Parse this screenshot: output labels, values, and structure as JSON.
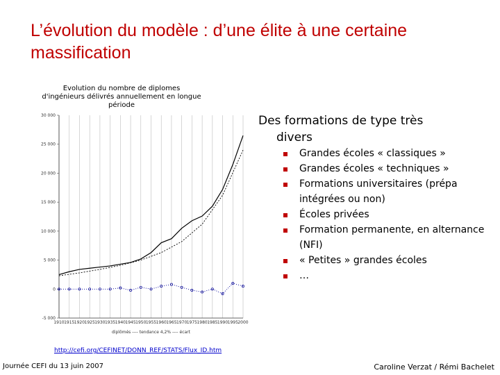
{
  "slide": {
    "title": "L’évolution du modèle : d’une élite à une certaine massification",
    "heading_line1": "Des formations de type très",
    "heading_line2": "divers",
    "bullets": [
      "Grandes écoles « classiques »",
      "Grandes écoles « techniques »",
      "Formations universitaires (prépa intégrées ou non)",
      "Écoles privées",
      "Formation permanente, en alternance (NFI)",
      "« Petites » grandes écoles",
      "…"
    ],
    "link": "http://cefi.org/CEFINET/DONN_REF/STATS/Flux_ID.htm",
    "footer_left": "Journée CEFI du 13 juin 2007",
    "footer_right": "Caroline Verzat / Rémi Bachelet"
  },
  "chart_data": {
    "type": "line",
    "title": "Evolution du nombre de diplomes d'ingénieurs délivrés annuellement en longue période",
    "xlabel": "",
    "ylabel": "",
    "x_ticks": [
      "1910",
      "1915",
      "1920",
      "1925",
      "1930",
      "1935",
      "1940",
      "1945",
      "1950",
      "1955",
      "1960",
      "1965",
      "1970",
      "1975",
      "1980",
      "1985",
      "1990",
      "1995",
      "2000"
    ],
    "y_ticks": [
      "30 000",
      "25 000",
      "20 000",
      "15 000",
      "10 000",
      "5 000",
      "0",
      "-5 000"
    ],
    "ylim": [
      -5000,
      30000
    ],
    "xlim": [
      1910,
      2000
    ],
    "legend_text": "diplômés ---- tendance 4,2% ---- écart",
    "grid": true,
    "series": [
      {
        "color": "#000000",
        "x": [
          1910,
          1915,
          1920,
          1925,
          1930,
          1935,
          1940,
          1945,
          1950,
          1955,
          1960,
          1965,
          1970,
          1975,
          1980,
          1985,
          1990,
          1995,
          2000
        ],
        "values": [
          2500,
          3000,
          3400,
          3600,
          3800,
          4000,
          4300,
          4600,
          5200,
          6300,
          8000,
          8700,
          10500,
          11800,
          12600,
          14300,
          17200,
          21500,
          26500
        ]
      },
      {
        "color": "#000000",
        "x": [
          1910,
          1920,
          1930,
          1940,
          1950,
          1960,
          1970,
          1980,
          1990,
          2000
        ],
        "values": [
          2300,
          2800,
          3400,
          4100,
          5000,
          6300,
          8200,
          11200,
          16200,
          24000
        ]
      },
      {
        "color": "#000099",
        "x": [
          1910,
          1915,
          1920,
          1925,
          1930,
          1935,
          1940,
          1945,
          1950,
          1955,
          1960,
          1965,
          1970,
          1975,
          1980,
          1985,
          1990,
          1995,
          2000
        ],
        "values": [
          0,
          0,
          0,
          0,
          0,
          0,
          200,
          -200,
          300,
          0,
          500,
          800,
          300,
          -200,
          -500,
          0,
          -800,
          1000,
          500
        ]
      }
    ]
  }
}
